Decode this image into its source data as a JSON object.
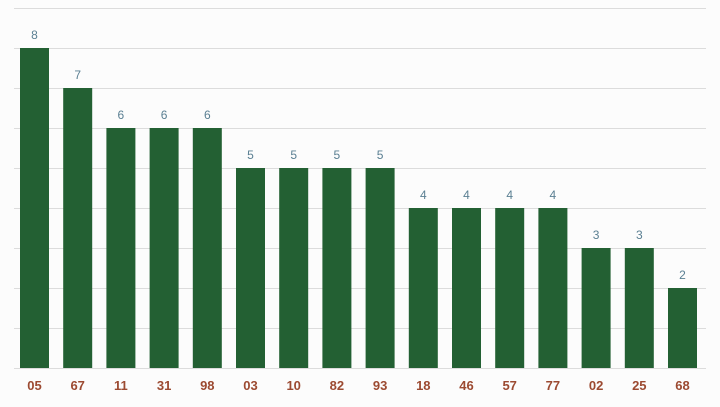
{
  "chart_data": {
    "type": "bar",
    "categories": [
      "05",
      "67",
      "11",
      "31",
      "98",
      "03",
      "10",
      "82",
      "93",
      "18",
      "46",
      "57",
      "77",
      "02",
      "25",
      "68"
    ],
    "values": [
      8,
      7,
      6,
      6,
      6,
      5,
      5,
      5,
      5,
      4,
      4,
      4,
      4,
      3,
      3,
      2
    ],
    "ylim": [
      0,
      9
    ],
    "grid": true,
    "legend": "none",
    "colors": {
      "bar": "#236033",
      "value_label": "#5a7f92",
      "category_label": "#9c4a31",
      "grid": "#dcdcdc"
    }
  }
}
